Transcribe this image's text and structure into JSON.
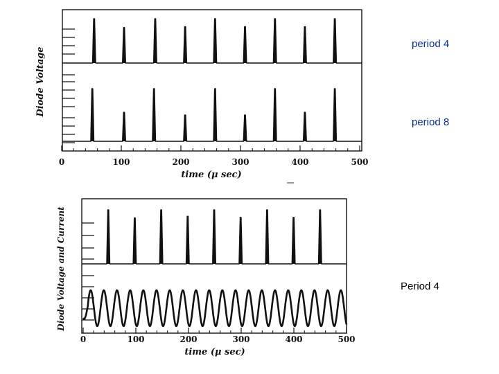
{
  "labels": {
    "top_trace": "period 4",
    "middle_trace": "period 8",
    "bottom_figure": "Period 4"
  },
  "chart_data": [
    {
      "type": "line",
      "title": "",
      "xlabel": "time (μ sec)",
      "ylabel": "Diode Voltage",
      "xlim": [
        0,
        500
      ],
      "xticks": [
        0,
        100,
        200,
        300,
        400,
        500
      ],
      "series": [
        {
          "peaks_x": [
            53,
            103,
            155,
            205,
            255,
            305,
            355,
            405,
            455
          ],
          "peaks_amp": [
            1.0,
            0.8,
            1.0,
            0.82,
            1.0,
            0.82,
            1.0,
            0.82,
            1.0
          ]
        },
        {
          "peaks_x": [
            50,
            103,
            153,
            205,
            255,
            305,
            355,
            405,
            455
          ],
          "peaks_amp": [
            1.0,
            0.55,
            1.0,
            0.5,
            1.0,
            0.5,
            1.0,
            0.55,
            1.0
          ]
        }
      ]
    },
    {
      "type": "line",
      "title": "",
      "xlabel": "time (μ sec)",
      "ylabel": "Diode Voltage and Current",
      "xlim": [
        0,
        500
      ],
      "xticks": [
        0,
        100,
        200,
        300,
        400,
        500
      ],
      "series": [
        {
          "peaks_x": [
            50,
            100,
            150,
            200,
            250,
            300,
            350,
            400,
            450
          ],
          "peaks_amp": [
            1.0,
            0.85,
            1.0,
            0.88,
            1.0,
            0.86,
            1.0,
            0.86,
            1.0
          ]
        },
        {
          "oscillation_period": 25,
          "oscillation_amplitude": 1.0
        }
      ]
    }
  ]
}
